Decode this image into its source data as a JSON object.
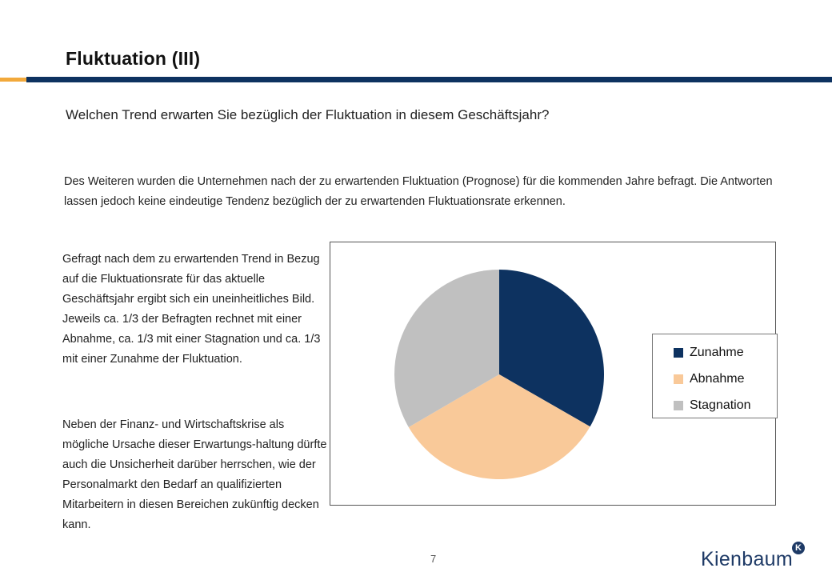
{
  "header": {
    "title": "Fluktuation (III)",
    "accent_color": "#f2a93b",
    "rule_color": "#0d3260"
  },
  "subtitle": "Welchen Trend erwarten Sie bezüglich der Fluktuation in diesem Geschäftsjahr?",
  "intro_text": "Des Weiteren wurden die Unternehmen nach der zu erwartenden Fluktuation (Prognose) für die kommenden Jahre befragt. Die Antworten lassen jedoch keine eindeutige Tendenz bezüglich der zu erwartenden Fluktuationsrate erkennen.",
  "left_text": {
    "paragraph1": "Gefragt nach dem zu erwartenden Trend in Bezug auf die Fluktuationsrate für das aktuelle Geschäftsjahr ergibt sich ein uneinheitliches Bild. Jeweils ca. 1/3 der Befragten rechnet mit einer Abnahme, ca. 1/3 mit einer Stagnation und ca. 1/3 mit einer Zunahme der Fluktuation.",
    "paragraph2": "Neben der Finanz- und Wirtschaftskrise als mögliche Ursache  dieser Erwartungs-haltung dürfte auch die Unsicherheit darüber herrschen, wie der Personalmarkt den Bedarf an qualifizierten Mitarbeitern in diesen Bereichen zukünftig decken kann."
  },
  "chart_data": {
    "type": "pie",
    "title": "",
    "categories": [
      "Zunahme",
      "Abnahme",
      "Stagnation"
    ],
    "values": [
      33.3,
      33.3,
      33.4
    ],
    "colors": [
      "#0d3260",
      "#f9c999",
      "#c0c0c0"
    ],
    "legend": "right"
  },
  "footer": {
    "page_number": "7",
    "logo_text": "Kienbaum",
    "logo_badge": "K",
    "logo_badge_color": "#1e3a66"
  }
}
